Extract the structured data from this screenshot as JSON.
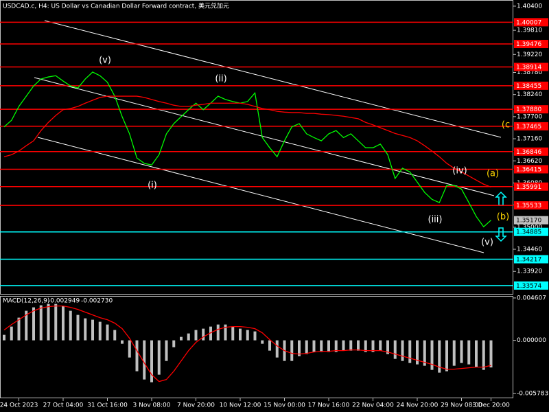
{
  "chart_data": [
    {
      "type": "line",
      "title": "USDCAD.c, H4:  US Dollar vs Canadian Dollar Forward contract, 美元兑加元",
      "categories": [
        null,
        null,
        "24 Oct 2023",
        null,
        null,
        null,
        null,
        null,
        "27 Oct 04:00",
        null,
        null,
        null,
        null,
        null,
        "31 Oct 16:00",
        null,
        null,
        null,
        null,
        null,
        "3 Nov 08:00",
        null,
        null,
        null,
        null,
        null,
        "7 Nov 20:00",
        null,
        null,
        null,
        null,
        null,
        "10 Nov 12:00",
        null,
        null,
        null,
        null,
        null,
        "15 Nov 00:00",
        null,
        null,
        null,
        null,
        null,
        "17 Nov 16:00",
        null,
        null,
        null,
        null,
        null,
        "22 Nov 04:00",
        null,
        null,
        null,
        null,
        null,
        "24 Nov 20:00",
        null,
        null,
        null,
        null,
        null,
        "29 Nov 08:00",
        null,
        null,
        null,
        "3 Dec 20:00"
      ],
      "series": [
        {
          "color": "#00ff00",
          "values": [
            1.3745,
            1.3761,
            1.3795,
            1.382,
            1.3845,
            1.3862,
            1.3867,
            1.387,
            1.3857,
            1.3845,
            1.384,
            1.3862,
            1.3879,
            1.387,
            1.3854,
            1.382,
            1.377,
            1.3728,
            1.3669,
            1.3656,
            1.3652,
            1.3677,
            1.3728,
            1.3753,
            1.377,
            1.3787,
            1.3803,
            1.3787,
            1.3803,
            1.382,
            1.3812,
            1.3807,
            1.3803,
            1.3807,
            1.3828,
            1.3719,
            1.3694,
            1.3672,
            1.3711,
            1.3745,
            1.3753,
            1.3728,
            1.3719,
            1.3711,
            1.3728,
            1.3736,
            1.3719,
            1.3728,
            1.3711,
            1.3694,
            1.3694,
            1.3703,
            1.3677,
            1.3619,
            1.3644,
            1.3635,
            1.361,
            1.3585,
            1.3568,
            1.356,
            1.3602,
            1.3602,
            1.3593,
            1.356,
            1.3526,
            1.3501,
            1.3517
          ]
        },
        {
          "color": "#ff0000",
          "values": [
            1.3672,
            1.3677,
            1.3686,
            1.3699,
            1.3711,
            1.3736,
            1.3756,
            1.3773,
            1.3787,
            1.379,
            1.3795,
            1.3803,
            1.381,
            1.3817,
            1.382,
            1.382,
            1.382,
            1.382,
            1.382,
            1.3817,
            1.3812,
            1.3807,
            1.3803,
            1.3798,
            1.3795,
            1.3795,
            1.3798,
            1.38,
            1.3803,
            1.3803,
            1.3803,
            1.3803,
            1.3803,
            1.38,
            1.3795,
            1.379,
            1.3787,
            1.3783,
            1.3781,
            1.378,
            1.378,
            1.3778,
            1.3778,
            1.3776,
            1.3775,
            1.3773,
            1.3771,
            1.3768,
            1.3765,
            1.3756,
            1.375,
            1.3743,
            1.3736,
            1.3729,
            1.3724,
            1.3719,
            1.3711,
            1.3699,
            1.3686,
            1.3672,
            1.3656,
            1.3644,
            1.3635,
            1.3625,
            1.3615,
            1.3605,
            1.3598
          ]
        }
      ],
      "ylim": [
        1.3337,
        1.4055
      ],
      "yticks": [
        {
          "value": 1.404,
          "label": "1.40400"
        },
        {
          "value": 1.3981,
          "label": "1.39810"
        },
        {
          "value": 1.3922,
          "label": "1.39220"
        },
        {
          "value": 1.3878,
          "label": "1.38780"
        },
        {
          "value": 1.3824,
          "label": "1.38240"
        },
        {
          "value": 1.377,
          "label": "1.37700"
        },
        {
          "value": 1.3716,
          "label": "1.37160"
        },
        {
          "value": 1.3662,
          "label": "1.36620"
        },
        {
          "value": 1.3608,
          "label": "1.36080"
        },
        {
          "value": 1.3554,
          "label": "1.35540"
        },
        {
          "value": 1.35,
          "label": "1.35000"
        },
        {
          "value": 1.3446,
          "label": "1.34460"
        },
        {
          "value": 1.3392,
          "label": "1.33920"
        }
      ],
      "levels": [
        {
          "value": 1.40007,
          "label": "1.40007",
          "color": "#ff0000"
        },
        {
          "value": 1.39476,
          "label": "1.39476",
          "color": "#ff0000"
        },
        {
          "value": 1.38914,
          "label": "1.38914",
          "color": "#ff0000"
        },
        {
          "value": 1.38455,
          "label": "1.38455",
          "color": "#ff0000"
        },
        {
          "value": 1.3788,
          "label": "1.37880",
          "color": "#ff0000"
        },
        {
          "value": 1.37465,
          "label": "1.37465",
          "color": "#ff0000"
        },
        {
          "value": 1.36846,
          "label": "1.36846",
          "color": "#ff0000"
        },
        {
          "value": 1.36415,
          "label": "1.36415",
          "color": "#ff0000"
        },
        {
          "value": 1.35991,
          "label": "1.35991",
          "color": "#ff0000"
        },
        {
          "value": 1.35533,
          "label": "1.35533",
          "color": "#ff0000"
        },
        {
          "value": 1.34885,
          "label": "1.34885",
          "color": "#00ffff"
        },
        {
          "value": 1.34217,
          "label": "1.34217",
          "color": "#00ffff"
        },
        {
          "value": 1.33574,
          "label": "1.33574",
          "color": "#00ffff"
        }
      ],
      "current_price": {
        "value": 1.3517,
        "label": "1.35170",
        "color": "#c0c0c0"
      },
      "annotations": [
        {
          "text": "(v)",
          "color": "#ffffff"
        },
        {
          "text": "(ii)",
          "color": "#ffffff"
        },
        {
          "text": "(i)",
          "color": "#ffffff"
        },
        {
          "text": "(iii)",
          "color": "#ffffff"
        },
        {
          "text": "(iv)",
          "color": "#ffffff"
        },
        {
          "text": "(v)",
          "color": "#ffffff"
        },
        {
          "text": "(a)",
          "color": "#ffd700"
        },
        {
          "text": "(b)",
          "color": "#ffd700"
        },
        {
          "text": "(c",
          "color": "#ffd700"
        }
      ]
    },
    {
      "type": "bar",
      "title": "MACD(12,26,9)",
      "current_values": [
        {
          "value": -0.002949,
          "label": "-0.002949"
        },
        {
          "value": -0.00273,
          "label": "-0.002730"
        }
      ],
      "series": [
        {
          "color": "#c0c0c0",
          "values": [
            0.000598,
            0.001494,
            0.002465,
            0.003212,
            0.003586,
            0.00381,
            0.003959,
            0.003959,
            0.003735,
            0.003212,
            0.002764,
            0.00239,
            0.002241,
            0.002017,
            0.001718,
            0.001121,
            -0.000374,
            -0.001868,
            -0.003362,
            -0.004258,
            -0.004557,
            -0.003735,
            -0.002241,
            -0.000747,
            0.000374,
            0.000747,
            0.001121,
            0.00127,
            0.001494,
            0.001718,
            0.001718,
            0.001494,
            0.00127,
            0.001121,
            0.000971,
            -0.000374,
            -0.001121,
            -0.001868,
            -0.002241,
            -0.002241,
            -0.001718,
            -0.001494,
            -0.00127,
            -0.00127,
            -0.00127,
            -0.00127,
            -0.001121,
            -0.001121,
            -0.001121,
            -0.00127,
            -0.00127,
            -0.001121,
            -0.001494,
            -0.002017,
            -0.002241,
            -0.002465,
            -0.002615,
            -0.002764,
            -0.003212,
            -0.003511,
            -0.003362,
            -0.002764,
            -0.002465,
            -0.002615,
            -0.002913,
            -0.003212,
            -0.002949
          ]
        },
        {
          "type": "line",
          "color": "#ff0000",
          "values": [
            0.001121,
            0.001718,
            0.002241,
            0.002764,
            0.003212,
            0.003511,
            0.00366,
            0.003735,
            0.003735,
            0.003586,
            0.003362,
            0.003063,
            0.002764,
            0.002465,
            0.002241,
            0.001868,
            0.00127,
            0.000224,
            -0.001121,
            -0.002465,
            -0.003735,
            -0.004482,
            -0.004258,
            -0.003362,
            -0.002241,
            -0.001121,
            -0.000224,
            0.000374,
            0.000822,
            0.001195,
            0.001419,
            0.001494,
            0.001494,
            0.001419,
            0.00127,
            0.000822,
            7.5e-05,
            -0.000598,
            -0.001121,
            -0.001419,
            -0.001494,
            -0.001419,
            -0.00127,
            -0.001195,
            -0.001195,
            -0.001121,
            -0.001121,
            -0.001046,
            -0.001046,
            -0.001121,
            -0.001121,
            -0.001121,
            -0.00127,
            -0.001494,
            -0.001718,
            -0.001942,
            -0.002166,
            -0.00239,
            -0.002615,
            -0.002913,
            -0.003137,
            -0.003137,
            -0.003063,
            -0.002988,
            -0.002913,
            -0.002913,
            -0.00273
          ]
        }
      ],
      "ylim": [
        -0.0063,
        0.0049
      ],
      "yticks": [
        0.004607,
        {
          "value": 0,
          "label": "0.000000"
        },
        -0.005783
      ]
    }
  ]
}
